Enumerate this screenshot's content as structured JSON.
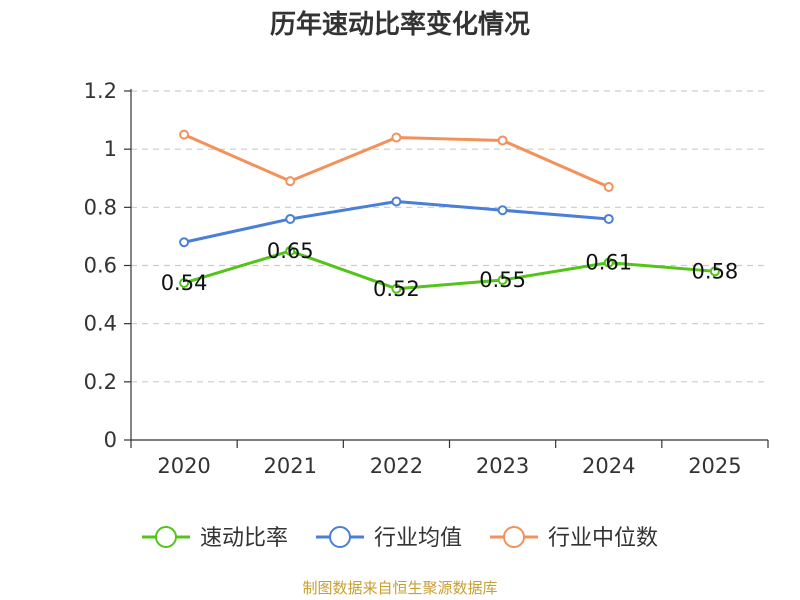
{
  "chart_data": {
    "type": "line",
    "title": "历年速动比率变化情况",
    "categories": [
      "2020",
      "2021",
      "2022",
      "2023",
      "2024",
      "2025"
    ],
    "ylim": [
      0,
      1.2
    ],
    "yticks": [
      "0",
      "0.2",
      "0.4",
      "0.6",
      "0.8",
      "1",
      "1.2"
    ],
    "grid": true,
    "legend_position": "bottom",
    "series": [
      {
        "name": "速动比率",
        "color": "#52c41a",
        "values": [
          0.54,
          0.65,
          0.52,
          0.55,
          0.61,
          0.58
        ],
        "labels": [
          "0.54",
          "0.65",
          "0.52",
          "0.55",
          "0.61",
          "0.58"
        ]
      },
      {
        "name": "行业均值",
        "color": "#4a7fd8",
        "values": [
          0.68,
          0.76,
          0.82,
          0.79,
          0.76,
          null
        ]
      },
      {
        "name": "行业中位数",
        "color": "#f4915b",
        "values": [
          1.05,
          0.89,
          1.04,
          1.03,
          0.87,
          null
        ]
      }
    ],
    "source": "制图数据来自恒生聚源数据库"
  }
}
